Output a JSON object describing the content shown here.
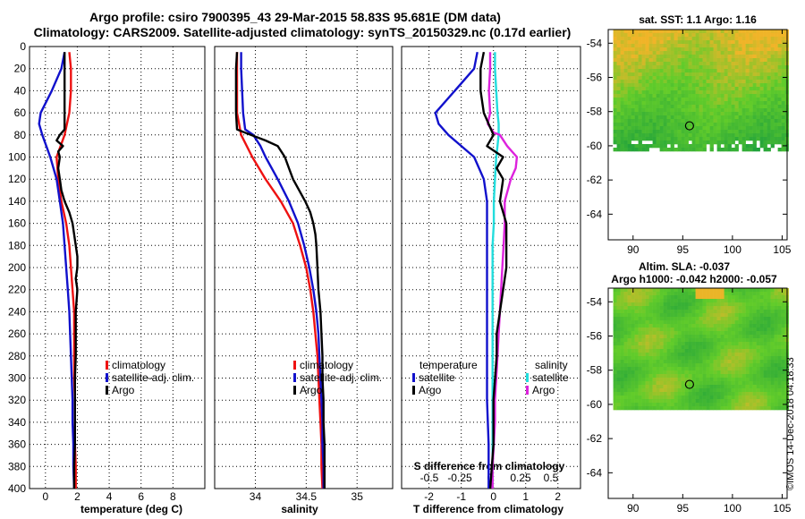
{
  "title": {
    "line1": "Argo profile: csiro 7900395_43 29-Mar-2015 58.83S 95.681E (DM data)",
    "line2": "Climatology: CARS2009. Satellite-adjusted climatology: synTS_20150329.nc (0.17d earlier)"
  },
  "footer_stamp": "©IMOS 14-Dec-2018 04:18:33",
  "colors": {
    "climatology": "#ee1111",
    "satellite": "#1111cc",
    "argo": "#000000",
    "sat_salinity": "#22dddd",
    "argo_salinity": "#dd22dd",
    "map_low": "#1ea03c",
    "map_mid": "#62cc2a",
    "map_high": "#f0b428"
  },
  "chart_data": [
    {
      "type": "line",
      "name": "temperature-profile",
      "xlabel": "temperature (deg C)",
      "ylabel": "depth",
      "xlim": [
        -1,
        10
      ],
      "ylim": [
        400,
        0
      ],
      "xticks": [
        0,
        2,
        4,
        6,
        8
      ],
      "xtick_labels": [
        "0",
        "2",
        "4",
        "6",
        "8"
      ],
      "yticks": [
        0,
        20,
        40,
        60,
        80,
        100,
        120,
        140,
        160,
        180,
        200,
        220,
        240,
        260,
        280,
        300,
        320,
        340,
        360,
        380,
        400
      ],
      "legend": [
        "climatology",
        "satellite-adj. clim.",
        "Argo"
      ],
      "series": [
        {
          "name": "climatology",
          "color": "#ee1111",
          "depth": [
            5,
            20,
            40,
            60,
            80,
            100,
            120,
            140,
            160,
            180,
            200,
            220,
            240,
            260,
            280,
            300,
            320,
            340,
            360,
            380,
            400
          ],
          "values": [
            1.5,
            1.6,
            1.6,
            1.5,
            1.2,
            0.7,
            0.8,
            1.0,
            1.3,
            1.5,
            1.6,
            1.7,
            1.8,
            1.8,
            1.8,
            1.8,
            1.85,
            1.85,
            1.85,
            1.9,
            1.9
          ]
        },
        {
          "name": "satellite-adj. clim.",
          "color": "#1111cc",
          "depth": [
            5,
            20,
            40,
            60,
            70,
            80,
            100,
            120,
            140,
            160,
            180,
            200,
            220,
            240,
            260,
            280,
            300,
            320,
            340,
            360,
            380,
            400
          ],
          "values": [
            1.2,
            1.0,
            0.4,
            -0.3,
            -0.4,
            -0.2,
            0.3,
            0.7,
            0.9,
            1.1,
            1.2,
            1.3,
            1.4,
            1.5,
            1.55,
            1.6,
            1.65,
            1.7,
            1.7,
            1.75,
            1.75,
            1.8
          ]
        },
        {
          "name": "Argo",
          "color": "#000000",
          "depth": [
            5,
            20,
            40,
            60,
            75,
            80,
            85,
            90,
            95,
            100,
            110,
            120,
            130,
            140,
            150,
            160,
            170,
            180,
            190,
            200,
            210,
            220,
            240,
            260,
            280,
            300,
            320,
            340,
            360,
            380,
            400
          ],
          "values": [
            1.2,
            1.2,
            1.2,
            1.2,
            1.2,
            0.9,
            0.7,
            1.1,
            0.8,
            0.9,
            0.8,
            0.9,
            1.0,
            1.2,
            1.5,
            1.7,
            1.8,
            1.9,
            2.0,
            2.0,
            1.9,
            2.0,
            1.9,
            1.9,
            1.9,
            1.85,
            1.85,
            1.85,
            1.85,
            1.8,
            1.8
          ]
        }
      ]
    },
    {
      "type": "line",
      "name": "salinity-profile",
      "xlabel": "salinity",
      "ylabel": "depth",
      "xlim": [
        33.6,
        35.35
      ],
      "ylim": [
        400,
        0
      ],
      "xticks": [
        34,
        34.5,
        35
      ],
      "xtick_labels": [
        "34",
        "34.5",
        "35"
      ],
      "legend": [
        "climatology",
        "satellite-adj. clim.",
        "Argo"
      ],
      "series": [
        {
          "name": "climatology",
          "color": "#ee1111",
          "depth": [
            5,
            20,
            40,
            60,
            80,
            100,
            120,
            140,
            160,
            180,
            200,
            220,
            240,
            260,
            280,
            300,
            320,
            340,
            360,
            380,
            400
          ],
          "values": [
            33.82,
            33.82,
            33.82,
            33.82,
            33.86,
            33.97,
            34.1,
            34.25,
            34.37,
            34.44,
            34.5,
            34.54,
            34.57,
            34.59,
            34.61,
            34.62,
            34.63,
            34.64,
            34.65,
            34.65,
            34.66
          ]
        },
        {
          "name": "satellite-adj. clim.",
          "color": "#1111cc",
          "depth": [
            5,
            20,
            40,
            60,
            75,
            80,
            90,
            100,
            120,
            140,
            160,
            180,
            200,
            220,
            240,
            260,
            280,
            300,
            320,
            340,
            360,
            380,
            400
          ],
          "values": [
            33.86,
            33.86,
            33.87,
            33.88,
            33.9,
            33.98,
            34.05,
            34.1,
            34.22,
            34.33,
            34.42,
            34.48,
            34.53,
            34.57,
            34.6,
            34.62,
            34.63,
            34.64,
            34.65,
            34.66,
            34.66,
            34.67,
            34.67
          ]
        },
        {
          "name": "Argo",
          "color": "#000000",
          "depth": [
            5,
            20,
            40,
            60,
            75,
            78,
            85,
            90,
            100,
            110,
            120,
            130,
            140,
            150,
            160,
            170,
            180,
            200,
            220,
            240,
            260,
            280,
            300,
            320,
            340,
            360,
            380,
            400
          ],
          "values": [
            33.82,
            33.81,
            33.81,
            33.81,
            33.82,
            33.9,
            34.1,
            34.22,
            34.29,
            34.33,
            34.37,
            34.43,
            34.49,
            34.54,
            34.57,
            34.59,
            34.6,
            34.61,
            34.62,
            34.64,
            34.65,
            34.66,
            34.66,
            34.67,
            34.67,
            34.68,
            34.68,
            34.68
          ]
        }
      ]
    },
    {
      "type": "line",
      "name": "difference-from-climatology",
      "xlabel": "T difference from climatology",
      "x2label": "S difference from climatology",
      "ylabel": "depth",
      "xlim": [
        -2.85,
        2.7
      ],
      "ylim": [
        400,
        0
      ],
      "xticks": [
        -2,
        -1,
        0,
        1,
        2
      ],
      "xtick_labels": [
        "-2",
        "-1",
        "0",
        "1",
        "2"
      ],
      "x2ticks": [
        -0.5,
        -0.25,
        0,
        0.25,
        0.5
      ],
      "x2tick_labels": [
        "-0.5",
        "-0.25",
        "0",
        "0.25",
        "0.5"
      ],
      "legend_temperature_title": "temperature",
      "legend_salinity_title": "salinity",
      "legend_temperature": [
        "satellite",
        "Argo"
      ],
      "legend_salinity": [
        "satellite",
        "Argo"
      ],
      "series": [
        {
          "name": "T satellite",
          "color": "#1111cc",
          "depth": [
            5,
            20,
            40,
            60,
            70,
            80,
            100,
            120,
            140,
            160,
            180,
            200,
            240,
            280,
            320,
            360,
            400
          ],
          "values": [
            -0.5,
            -0.6,
            -1.2,
            -1.8,
            -1.7,
            -1.4,
            -0.6,
            -0.3,
            -0.2,
            -0.2,
            -0.2,
            -0.2,
            -0.2,
            -0.2,
            -0.2,
            -0.15,
            -0.15
          ]
        },
        {
          "name": "T Argo",
          "color": "#000000",
          "depth": [
            5,
            20,
            40,
            60,
            80,
            90,
            100,
            110,
            120,
            140,
            160,
            180,
            200,
            220,
            240,
            260,
            280,
            300,
            320,
            340,
            360,
            380,
            400
          ],
          "values": [
            -0.3,
            -0.4,
            -0.4,
            -0.3,
            0.0,
            -0.2,
            0.3,
            0.1,
            0.3,
            0.2,
            0.4,
            0.4,
            0.4,
            0.3,
            0.2,
            0.1,
            0.1,
            0.05,
            0.0,
            0.0,
            0.0,
            -0.05,
            -0.1
          ]
        },
        {
          "name": "S satellite",
          "color": "#22dddd",
          "depth": [
            5,
            20,
            40,
            60,
            70,
            80,
            90,
            100,
            120,
            140,
            160,
            180,
            200,
            240,
            280,
            320,
            360,
            400
          ],
          "values": [
            0.04,
            0.04,
            0.05,
            0.06,
            0.07,
            0.07,
            0.06,
            0.05,
            0.04,
            0.03,
            0.03,
            0.02,
            0.02,
            0.02,
            0.02,
            0.02,
            0.02,
            0.02
          ]
        },
        {
          "name": "S Argo",
          "color": "#dd22dd",
          "depth": [
            5,
            20,
            40,
            60,
            70,
            78,
            80,
            90,
            100,
            110,
            120,
            140,
            160,
            180,
            200,
            220,
            240,
            260,
            280,
            300,
            320,
            340,
            360,
            380,
            400
          ],
          "values": [
            0.0,
            0.0,
            -0.01,
            0.0,
            -0.02,
            0.03,
            0.08,
            0.14,
            0.22,
            0.21,
            0.17,
            0.12,
            0.12,
            0.11,
            0.1,
            0.09,
            0.08,
            0.07,
            0.06,
            0.05,
            0.04,
            0.04,
            0.03,
            0.02,
            0.02
          ]
        }
      ]
    },
    {
      "type": "heatmap",
      "name": "sat-sst-map",
      "title": "sat. SST: 1.1 Argo: 1.16",
      "xlim": [
        87.5,
        105.5
      ],
      "ylim": [
        -65.5,
        -53.2
      ],
      "data_extent": {
        "lon": [
          88,
          105.5
        ],
        "lat": [
          -60.2,
          -53.2
        ]
      },
      "xticks": [
        90,
        95,
        100,
        105
      ],
      "xtick_labels": [
        "90",
        "95",
        "100",
        "105"
      ],
      "yticks": [
        -54,
        -56,
        -58,
        -60,
        -62,
        -64
      ],
      "ytick_labels": [
        "-54",
        "-56",
        "-58",
        "-60",
        "-62",
        "-64"
      ],
      "marker": {
        "lon": 95.68,
        "lat": -58.83
      }
    },
    {
      "type": "heatmap",
      "name": "altim-sla-map",
      "title": "Altim. SLA: -0.037",
      "subtitle": "Argo h1000: -0.042 h2000: -0.057",
      "xlim": [
        87.5,
        105.5
      ],
      "ylim": [
        -65.5,
        -53.2
      ],
      "data_extent": {
        "lon": [
          88,
          105.5
        ],
        "lat": [
          -60.2,
          -53.2
        ]
      },
      "xticks": [
        90,
        95,
        100,
        105
      ],
      "xtick_labels": [
        "90",
        "95",
        "100",
        "105"
      ],
      "yticks": [
        -54,
        -56,
        -58,
        -60,
        -62,
        -64
      ],
      "ytick_labels": [
        "-54",
        "-56",
        "-58",
        "-60",
        "-62",
        "-64"
      ],
      "marker": {
        "lon": 95.68,
        "lat": -58.83
      }
    }
  ]
}
